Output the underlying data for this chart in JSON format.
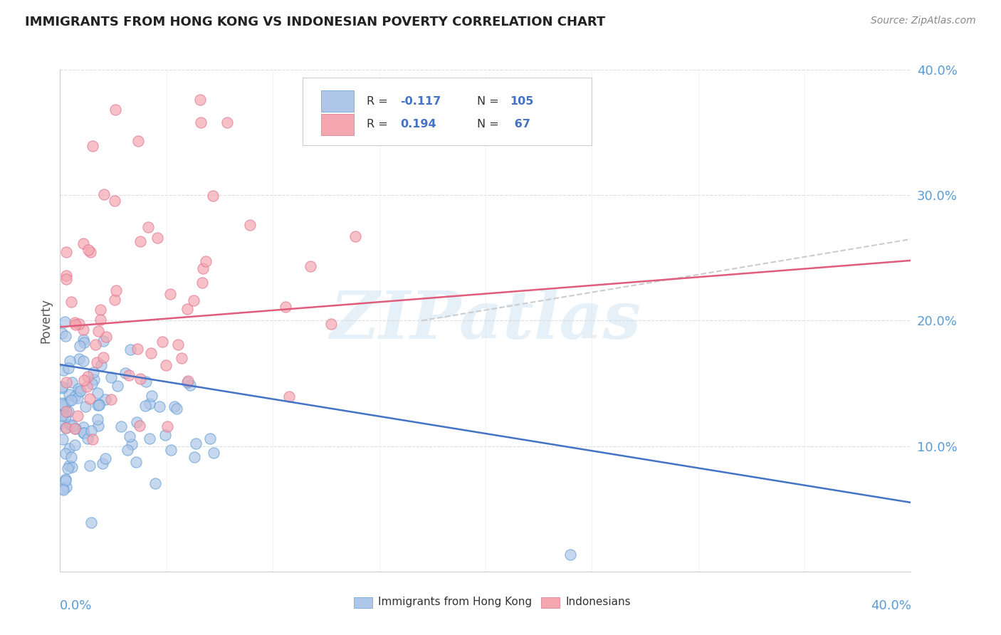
{
  "title": "IMMIGRANTS FROM HONG KONG VS INDONESIAN POVERTY CORRELATION CHART",
  "source": "Source: ZipAtlas.com",
  "ylabel": "Poverty",
  "xlim": [
    0,
    0.4
  ],
  "ylim": [
    0,
    0.4
  ],
  "yticks": [
    0.1,
    0.2,
    0.3,
    0.4
  ],
  "ytick_labels": [
    "10.0%",
    "20.0%",
    "30.0%",
    "40.0%"
  ],
  "blue_color": "#aec6e8",
  "pink_color": "#f4a7b0",
  "blue_edge_color": "#5b9bd5",
  "pink_edge_color": "#e07090",
  "blue_line_color": "#4472c4",
  "pink_line_color": "#e05c7a",
  "gray_dash_color": "#cccccc",
  "legend_label_blue": "Immigrants from Hong Kong",
  "legend_label_pink": "Indonesians",
  "watermark_text": "ZIPatlas",
  "blue_trend_x0": 0.0,
  "blue_trend_y0": 0.165,
  "blue_trend_x1": 0.4,
  "blue_trend_y1": 0.055,
  "pink_trend_x0": 0.0,
  "pink_trend_y0": 0.195,
  "pink_trend_x1": 0.4,
  "pink_trend_y1": 0.248,
  "gray_trend_x0": 0.17,
  "gray_trend_y0": 0.2,
  "gray_trend_x1": 0.4,
  "gray_trend_y1": 0.265
}
